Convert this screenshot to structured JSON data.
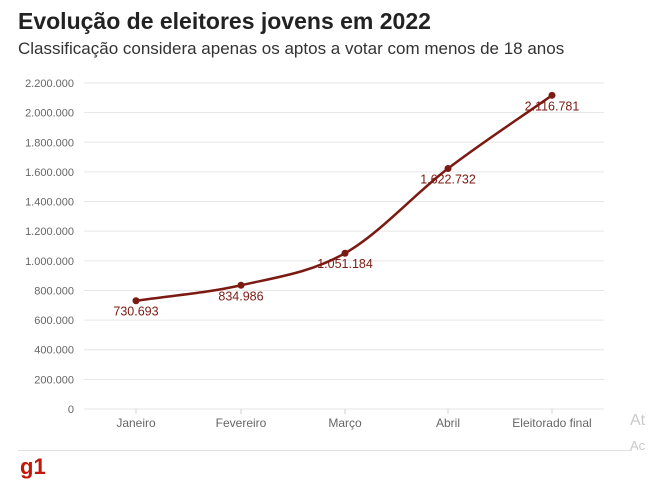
{
  "title": "Evolução de eleitores jovens em 2022",
  "subtitle": "Classificação considera apenas os aptos a votar com menos de 18 anos",
  "logo_text": "g1",
  "ghost_text": [
    "At",
    "Ac"
  ],
  "colors": {
    "line": "#7b1a13",
    "text": "#222222",
    "grid": "#e6e6e6",
    "brand": "#c4170c"
  },
  "chart_data": {
    "type": "line",
    "title": "Evolução de eleitores jovens em 2022",
    "subtitle": "Classificação considera apenas os aptos a votar com menos de 18 anos",
    "xlabel": "",
    "ylabel": "",
    "categories": [
      "Janeiro",
      "Fevereiro",
      "Março",
      "Abril",
      "Eleitorado final"
    ],
    "series": [
      {
        "name": "Eleitores jovens",
        "values": [
          730693,
          834986,
          1051184,
          1622732,
          2116781
        ]
      }
    ],
    "data_labels": [
      "730.693",
      "834.986",
      "1.051.184",
      "1.622.732",
      "2.116.781"
    ],
    "yticks": [
      0,
      200000,
      400000,
      600000,
      800000,
      1000000,
      1200000,
      1400000,
      1600000,
      1800000,
      2000000,
      2200000
    ],
    "ytick_labels": [
      "0",
      "200.000",
      "400.000",
      "600.000",
      "800.000",
      "1.000.000",
      "1.200.000",
      "1.400.000",
      "1.600.000",
      "1.800.000",
      "2.000.000",
      "2.200.000"
    ],
    "ylim": [
      0,
      2200000
    ],
    "grid": true
  }
}
